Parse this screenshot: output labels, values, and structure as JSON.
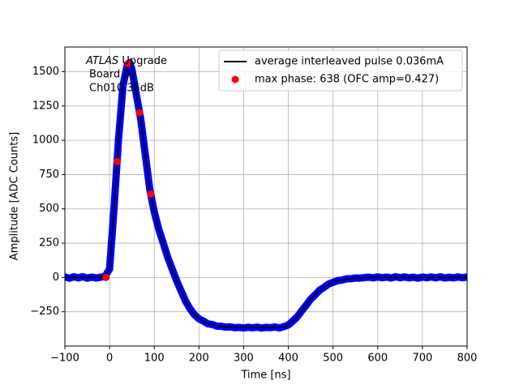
{
  "chart_data": {
    "type": "line",
    "xlabel": "Time [ns]",
    "ylabel": "Amplitude [ADC Counts]",
    "annotation": {
      "experiment": "ATLAS",
      "lines": [
        "Upgrade",
        "Board 0",
        "Ch010 35dB"
      ]
    },
    "xlim": [
      -100,
      800
    ],
    "xticks": [
      {
        "value": -100,
        "label": "−100"
      },
      0,
      100,
      200,
      300,
      400,
      500,
      600,
      700,
      800
    ],
    "ylim": [
      -500,
      1680
    ],
    "yticks": [
      {
        "value": -250,
        "label": "−250"
      },
      0,
      250,
      500,
      750,
      1000,
      1250,
      1500
    ],
    "grid": true,
    "legend": "upper right",
    "x": [
      -100,
      -90,
      -80,
      -70,
      -60,
      -50,
      -40,
      -30,
      -20,
      -10,
      0,
      10,
      20,
      30,
      40,
      45,
      50,
      60,
      70,
      80,
      90,
      100,
      110,
      120,
      130,
      140,
      150,
      160,
      170,
      180,
      190,
      200,
      210,
      220,
      230,
      240,
      250,
      260,
      270,
      280,
      290,
      300,
      310,
      320,
      330,
      340,
      350,
      360,
      370,
      380,
      390,
      400,
      410,
      420,
      430,
      440,
      450,
      460,
      470,
      480,
      490,
      500,
      510,
      520,
      530,
      540,
      550,
      560,
      570,
      580,
      590,
      600,
      610,
      620,
      630,
      640,
      650,
      660,
      670,
      680,
      690,
      700,
      710,
      720,
      730,
      740,
      750,
      760,
      770,
      780,
      790,
      800
    ],
    "series": [
      {
        "color": "#0000ff",
        "marks": "samples",
        "values": [
          4,
          -6,
          5,
          -3,
          6,
          -5,
          3,
          -4,
          2,
          8,
          62,
          505,
          1005,
          1398,
          1555,
          1566,
          1518,
          1332,
          1148,
          895,
          642,
          478,
          352,
          252,
          148,
          62,
          -22,
          -98,
          -172,
          -228,
          -272,
          -302,
          -318,
          -338,
          -343,
          -355,
          -356,
          -362,
          -360,
          -366,
          -364,
          -368,
          -363,
          -367,
          -362,
          -369,
          -364,
          -366,
          -361,
          -368,
          -358,
          -346,
          -318,
          -287,
          -243,
          -202,
          -158,
          -127,
          -93,
          -72,
          -48,
          -36,
          -23,
          -19,
          -10,
          -9,
          -4,
          -5,
          -1,
          2,
          -3,
          4,
          -2,
          3,
          -4,
          5,
          -2,
          4,
          -3,
          2,
          -5,
          3,
          -2,
          4,
          -3,
          5,
          -4,
          2,
          -3,
          4,
          -2,
          3
        ]
      },
      {
        "name": "average interleaved pulse 0.036mA",
        "color": "#000000",
        "marks": "line",
        "values": [
          0,
          0,
          0,
          0,
          0,
          0,
          0,
          0,
          0,
          5,
          60,
          500,
          1000,
          1400,
          1560,
          1570,
          1520,
          1330,
          1150,
          900,
          640,
          480,
          350,
          250,
          150,
          60,
          -20,
          -100,
          -170,
          -230,
          -270,
          -300,
          -320,
          -335,
          -345,
          -352,
          -357,
          -360,
          -362,
          -364,
          -365,
          -365,
          -365,
          -365,
          -365,
          -365,
          -365,
          -365,
          -365,
          -364,
          -360,
          -345,
          -320,
          -285,
          -245,
          -200,
          -160,
          -125,
          -95,
          -70,
          -50,
          -35,
          -25,
          -18,
          -12,
          -8,
          -5,
          -3,
          -2,
          -1,
          0,
          0,
          0,
          0,
          0,
          0,
          0,
          0,
          0,
          0,
          0,
          0,
          0,
          0,
          0,
          0,
          0,
          0,
          0,
          0,
          0,
          0
        ]
      },
      {
        "name": "max phase: 638 (OFC amp=0.427)",
        "color": "#ff0000",
        "marks": "points",
        "x": [
          -8,
          17,
          42,
          67,
          92
        ],
        "values": [
          0,
          845,
          1560,
          1200,
          608
        ]
      }
    ]
  }
}
